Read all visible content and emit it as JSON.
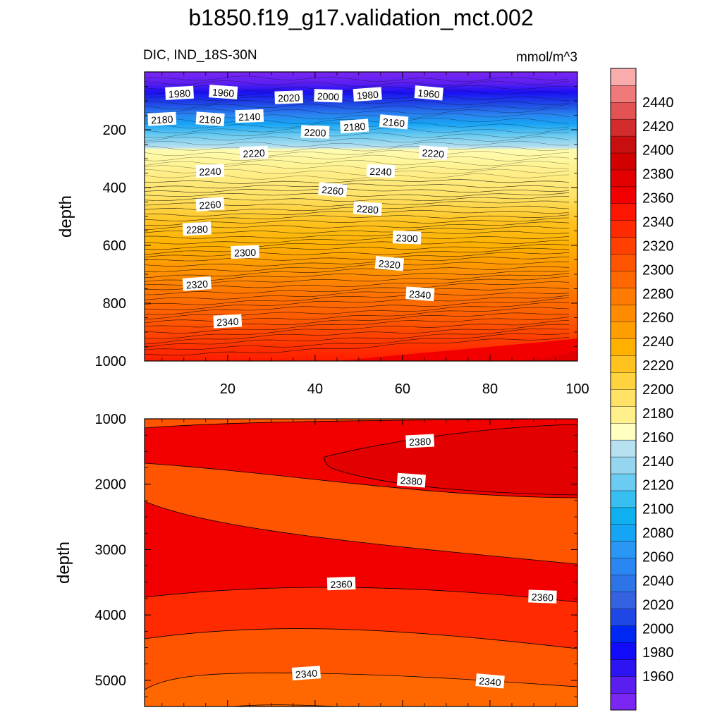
{
  "chart_data": {
    "type": "contour",
    "title": "b1850.f19_g17.validation_mct.002",
    "subtitle_left": "DIC, IND_18S-30N",
    "units": "mmol/m^3",
    "colorbar": {
      "levels": [
        1960,
        1980,
        2000,
        2020,
        2040,
        2060,
        2080,
        2100,
        2120,
        2140,
        2160,
        2180,
        2200,
        2220,
        2240,
        2260,
        2280,
        2300,
        2320,
        2340,
        2360,
        2380,
        2400,
        2420,
        2440
      ],
      "colors": [
        "#7b27f3",
        "#5a1ff0",
        "#2d14f2",
        "#120bf8",
        "#0028f5",
        "#1f47e5",
        "#3562e0",
        "#2d74e8",
        "#2a86f0",
        "#2a97f5",
        "#16a4f5",
        "#0eb0ef",
        "#38bff2",
        "#6ccbf0",
        "#96d5ef",
        "#b7e0f0",
        "#ffffbf",
        "#fff08c",
        "#ffe266",
        "#ffd33f",
        "#ffc21e",
        "#ffb000",
        "#ff9e00",
        "#ff8b00",
        "#ff7a00",
        "#ff6800",
        "#ff5500",
        "#ff4000",
        "#ff2a00",
        "#ff1600",
        "#f20000",
        "#e30000",
        "#d30000",
        "#c80f0f",
        "#d22c2c",
        "#e35353",
        "#ee7a7a",
        "#f8acac"
      ],
      "labels": [
        "1960",
        "1980",
        "2000",
        "2020",
        "2040",
        "2060",
        "2080",
        "2100",
        "2120",
        "2140",
        "2160",
        "2180",
        "2200",
        "2220",
        "2240",
        "2260",
        "2280",
        "2300",
        "2320",
        "2340",
        "2360",
        "2380",
        "2400",
        "2420",
        "2440"
      ]
    },
    "panels": [
      {
        "name": "upper",
        "xlabel": "",
        "ylabel": "depth",
        "xlim": [
          1,
          100
        ],
        "ylim": [
          0,
          1000
        ],
        "y_inverted": true,
        "xticks": [
          "20",
          "40",
          "60",
          "80",
          "100"
        ],
        "yticks": [
          "200",
          "400",
          "600",
          "800",
          "1000"
        ],
        "contour_labels": [
          {
            "text": "1980",
            "x": 9,
            "y": 75
          },
          {
            "text": "1960",
            "x": 19,
            "y": 72
          },
          {
            "text": "2020",
            "x": 34,
            "y": 90
          },
          {
            "text": "2000",
            "x": 43,
            "y": 85
          },
          {
            "text": "1980",
            "x": 52,
            "y": 80
          },
          {
            "text": "1960",
            "x": 66,
            "y": 75
          },
          {
            "text": "2180",
            "x": 5,
            "y": 165
          },
          {
            "text": "2160",
            "x": 16,
            "y": 165
          },
          {
            "text": "2140",
            "x": 25,
            "y": 155
          },
          {
            "text": "2200",
            "x": 40,
            "y": 210
          },
          {
            "text": "2180",
            "x": 49,
            "y": 190
          },
          {
            "text": "2160",
            "x": 58,
            "y": 175
          },
          {
            "text": "2220",
            "x": 26,
            "y": 282
          },
          {
            "text": "2220",
            "x": 67,
            "y": 282
          },
          {
            "text": "2240",
            "x": 16,
            "y": 345
          },
          {
            "text": "2240",
            "x": 55,
            "y": 345
          },
          {
            "text": "2260",
            "x": 16,
            "y": 460
          },
          {
            "text": "2260",
            "x": 44,
            "y": 410
          },
          {
            "text": "2280",
            "x": 13,
            "y": 545
          },
          {
            "text": "2280",
            "x": 52,
            "y": 475
          },
          {
            "text": "2300",
            "x": 24,
            "y": 625
          },
          {
            "text": "2300",
            "x": 61,
            "y": 575
          },
          {
            "text": "2320",
            "x": 13,
            "y": 735
          },
          {
            "text": "2320",
            "x": 57,
            "y": 665
          },
          {
            "text": "2340",
            "x": 20,
            "y": 865
          },
          {
            "text": "2340",
            "x": 64,
            "y": 770
          }
        ]
      },
      {
        "name": "lower",
        "xlabel": "",
        "ylabel": "depth",
        "xlim": [
          1,
          100
        ],
        "ylim": [
          1000,
          5400
        ],
        "y_inverted": true,
        "yticks": [
          "1000",
          "2000",
          "3000",
          "4000",
          "5000"
        ],
        "contour_labels": [
          {
            "text": "2380",
            "x": 64,
            "y": 1350
          },
          {
            "text": "2380",
            "x": 62,
            "y": 1950
          },
          {
            "text": "2360",
            "x": 46,
            "y": 3530
          },
          {
            "text": "2360",
            "x": 92,
            "y": 3730
          },
          {
            "text": "2340",
            "x": 38,
            "y": 4900
          },
          {
            "text": "2340",
            "x": 80,
            "y": 5020
          }
        ]
      }
    ]
  }
}
